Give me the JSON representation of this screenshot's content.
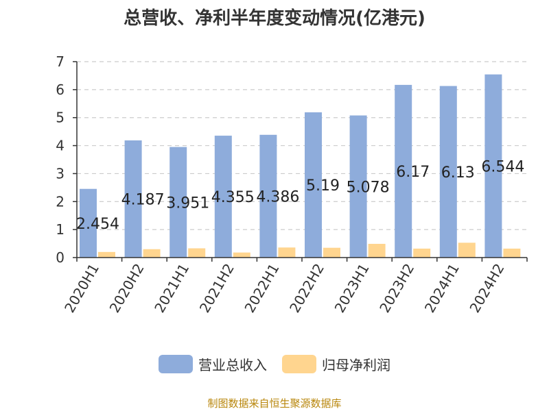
{
  "title": "总营收、净利半年度变动情况(亿港元)",
  "source": "制图数据来自恒生聚源数据库",
  "colors": {
    "revenue": "#8eacdb",
    "profit": "#ffd58f",
    "grid": "#cccccc",
    "axis": "#333333"
  },
  "chart_data": {
    "type": "bar",
    "title": "总营收、净利半年度变动情况(亿港元)",
    "categories": [
      "2020H1",
      "2020H2",
      "2021H1",
      "2021H2",
      "2022H1",
      "2022H2",
      "2023H1",
      "2023H2",
      "2024H1",
      "2024H2"
    ],
    "series": [
      {
        "name": "营业总收入",
        "values": [
          2.454,
          4.187,
          3.951,
          4.355,
          4.386,
          5.19,
          5.078,
          6.17,
          6.13,
          6.544
        ],
        "labels": [
          "2.454",
          "4.187",
          "3.951",
          "4.355",
          "4.386",
          "5.19",
          "5.078",
          "6.17",
          "6.13",
          "6.544"
        ]
      },
      {
        "name": "归母净利润",
        "values": [
          0.2,
          0.3,
          0.33,
          0.18,
          0.36,
          0.35,
          0.49,
          0.32,
          0.53,
          0.32
        ]
      }
    ],
    "ylim": [
      0,
      7
    ],
    "yticks": [
      0,
      1,
      2,
      3,
      4,
      5,
      6,
      7
    ],
    "grid": true,
    "legend_position": "bottom"
  }
}
